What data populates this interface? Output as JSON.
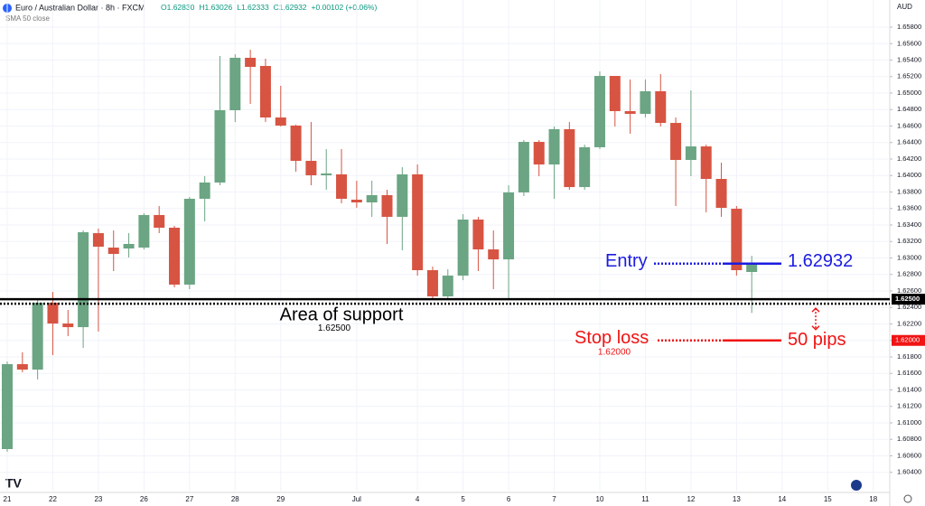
{
  "chart_data": {
    "type": "candlestick",
    "header": {
      "symbol": "Euro / Australian Dollar · 8h · FXCM",
      "ohlc": [
        "O1.62830",
        "H1.63026",
        "L1.62333",
        "C1.62932"
      ],
      "change": "+0.00102 (+0.06%)",
      "indicator": "SMA 50 close",
      "currency": "AUD"
    },
    "categories": [
      "21",
      null,
      null,
      "22",
      null,
      null,
      "23",
      null,
      null,
      "26",
      null,
      null,
      "27",
      null,
      null,
      "28",
      null,
      null,
      "29",
      null,
      null,
      null,
      null,
      "Jul",
      null,
      null,
      null,
      "4",
      null,
      null,
      "5",
      null,
      null,
      "6",
      null,
      null,
      "7",
      null,
      null,
      "10",
      null,
      null,
      "11",
      null,
      null,
      "12",
      null,
      null,
      "13",
      null,
      null,
      "14",
      null,
      null,
      "15",
      null,
      null,
      "18"
    ],
    "open": [
      1.60682,
      1.61712,
      1.61646,
      1.62457,
      1.62205,
      1.62161,
      1.63301,
      1.63126,
      1.63115,
      1.63126,
      1.63521,
      1.63367,
      1.62677,
      1.63718,
      1.63915,
      1.64792,
      1.65428,
      1.65329,
      1.64704,
      1.64606,
      1.64178,
      1.64003,
      1.64014,
      1.63707,
      1.63674,
      1.63762,
      1.63499,
      1.64014,
      1.62852,
      1.62534,
      1.62786,
      1.63466,
      1.63104,
      1.62983,
      1.63795,
      1.64408,
      1.64134,
      1.64562,
      1.6386,
      1.64343,
      1.65208,
      1.64781,
      1.64748,
      1.65022,
      1.64638,
      1.64189,
      1.64353,
      1.63959,
      1.63597,
      1.6283,
      null,
      null,
      null,
      null,
      null,
      null,
      null,
      null
    ],
    "high": [
      1.61745,
      1.61855,
      1.62512,
      1.62589,
      1.6237,
      1.63334,
      1.63356,
      1.63334,
      1.63301,
      1.63542,
      1.6363,
      1.63389,
      1.6374,
      1.63992,
      1.65449,
      1.65471,
      1.65526,
      1.65417,
      1.65088,
      1.64617,
      1.64649,
      1.64321,
      1.64321,
      1.63937,
      1.63937,
      1.63827,
      1.64101,
      1.64134,
      1.62896,
      1.62863,
      1.63531,
      1.63499,
      1.63334,
      1.63882,
      1.6443,
      1.6443,
      1.64595,
      1.64649,
      1.64375,
      1.65263,
      1.65208,
      1.65165,
      1.65165,
      1.6523,
      1.64704,
      1.65033,
      1.64375,
      1.64156,
      1.6363,
      1.63026,
      null,
      null,
      null,
      null,
      null,
      null,
      null,
      null
    ],
    "low": [
      1.60649,
      1.61614,
      1.61526,
      1.61822,
      1.62052,
      1.61909,
      1.62107,
      1.62841,
      1.63005,
      1.63104,
      1.63301,
      1.62644,
      1.62622,
      1.63444,
      1.63882,
      1.64649,
      1.64869,
      1.64649,
      1.64595,
      1.64047,
      1.63882,
      1.63827,
      1.63663,
      1.63608,
      1.63499,
      1.6317,
      1.63093,
      1.62786,
      1.62512,
      1.62512,
      1.62731,
      1.62841,
      1.62622,
      1.62512,
      1.63751,
      1.63992,
      1.63718,
      1.63827,
      1.63827,
      1.64321,
      1.64595,
      1.64507,
      1.64704,
      1.64595,
      1.6363,
      1.63992,
      1.63553,
      1.63499,
      1.62786,
      1.62333,
      null,
      null,
      null,
      null,
      null,
      null,
      null,
      null
    ],
    "close": [
      1.61712,
      1.61646,
      1.62457,
      1.62205,
      1.62161,
      1.63312,
      1.63137,
      1.63049,
      1.6317,
      1.63521,
      1.63367,
      1.62677,
      1.63718,
      1.63915,
      1.64792,
      1.65428,
      1.65318,
      1.64704,
      1.64606,
      1.64178,
      1.64003,
      1.64025,
      1.63718,
      1.63674,
      1.63762,
      1.63499,
      1.64014,
      1.62852,
      1.62534,
      1.62786,
      1.63466,
      1.63104,
      1.62983,
      1.63795,
      1.64408,
      1.64134,
      1.64562,
      1.6386,
      1.64343,
      1.65208,
      1.64781,
      1.64748,
      1.65022,
      1.64638,
      1.64189,
      1.64353,
      1.63959,
      1.63608,
      1.62852,
      1.62932,
      null,
      null,
      null,
      null,
      null,
      null,
      null,
      null
    ],
    "up_color": "#6ba583",
    "down_color": "#d75442",
    "ylim": [
      1.60156,
      1.66129
    ],
    "yticks": [
      {
        "value": 1.604,
        "label": "1.60400"
      },
      {
        "value": 1.606,
        "label": "1.60600"
      },
      {
        "value": 1.608,
        "label": "1.60800"
      },
      {
        "value": 1.61,
        "label": "1.61000"
      },
      {
        "value": 1.612,
        "label": "1.61200"
      },
      {
        "value": 1.614,
        "label": "1.61400"
      },
      {
        "value": 1.616,
        "label": "1.61600"
      },
      {
        "value": 1.618,
        "label": "1.61800"
      },
      {
        "value": 1.62,
        "label": "1.62000"
      },
      {
        "value": 1.622,
        "label": "1.62200"
      },
      {
        "value": 1.624,
        "label": "1.62400"
      },
      {
        "value": 1.626,
        "label": "1.62600"
      },
      {
        "value": 1.628,
        "label": "1.62800"
      },
      {
        "value": 1.63,
        "label": "1.63000"
      },
      {
        "value": 1.632,
        "label": "1.63200"
      },
      {
        "value": 1.634,
        "label": "1.63400"
      },
      {
        "value": 1.636,
        "label": "1.63600"
      },
      {
        "value": 1.638,
        "label": "1.63800"
      },
      {
        "value": 1.64,
        "label": "1.64000"
      },
      {
        "value": 1.642,
        "label": "1.64200"
      },
      {
        "value": 1.644,
        "label": "1.64400"
      },
      {
        "value": 1.646,
        "label": "1.64600"
      },
      {
        "value": 1.648,
        "label": "1.64800"
      },
      {
        "value": 1.65,
        "label": "1.65000"
      },
      {
        "value": 1.652,
        "label": "1.65200"
      },
      {
        "value": 1.654,
        "label": "1.65400"
      },
      {
        "value": 1.656,
        "label": "1.65600"
      },
      {
        "value": 1.658,
        "label": "1.65800"
      }
    ],
    "grid": true,
    "levels": [
      {
        "name": "Area of support",
        "value": {
          "value": 1.625,
          "label": "1.62500"
        },
        "color": "#000000"
      },
      {
        "name": "Entry",
        "value": 1.62932,
        "color": "#1c1ce0"
      },
      {
        "name": "Stop loss",
        "value": {
          "value": 1.62,
          "label": "1.62000"
        },
        "color": "#f01414",
        "note": "50 pips"
      }
    ]
  }
}
